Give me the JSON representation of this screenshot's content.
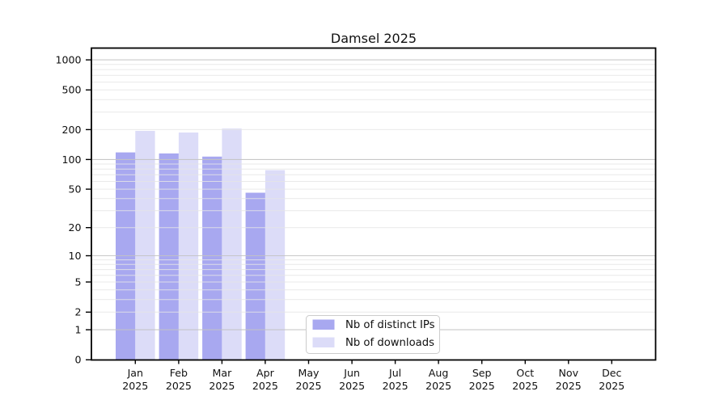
{
  "chart_data": {
    "type": "bar",
    "title": "Damsel 2025",
    "x_year": "2025",
    "categories": [
      "Jan",
      "Feb",
      "Mar",
      "Apr",
      "May",
      "Jun",
      "Jul",
      "Aug",
      "Sep",
      "Oct",
      "Nov",
      "Dec"
    ],
    "series": [
      {
        "name": "Nb of distinct IPs",
        "color": "#a8a8f0",
        "values": [
          118,
          115,
          107,
          46,
          null,
          null,
          null,
          null,
          null,
          null,
          null,
          null
        ]
      },
      {
        "name": "Nb of downloads",
        "color": "#dcdcf8",
        "values": [
          194,
          187,
          205,
          78,
          null,
          null,
          null,
          null,
          null,
          null,
          null,
          null
        ]
      }
    ],
    "yscale": "log10(value+1)",
    "yticks": [
      0,
      1,
      2,
      5,
      10,
      20,
      50,
      100,
      200,
      500,
      1000
    ],
    "ylim": [
      0,
      1300
    ],
    "grid": "horizontal; major lines at 1, 10, 100, 1000; minor lines at 2-9 of each decade",
    "legend_position": "lower center"
  },
  "colors": {
    "background": "#ffffff",
    "axis_frame": "#000000",
    "major_grid": "#c3c3c3",
    "minor_grid": "#e6e6e6",
    "tick_text": "#111111",
    "legend_border": "#cccccc",
    "legend_background": "#ffffff"
  }
}
